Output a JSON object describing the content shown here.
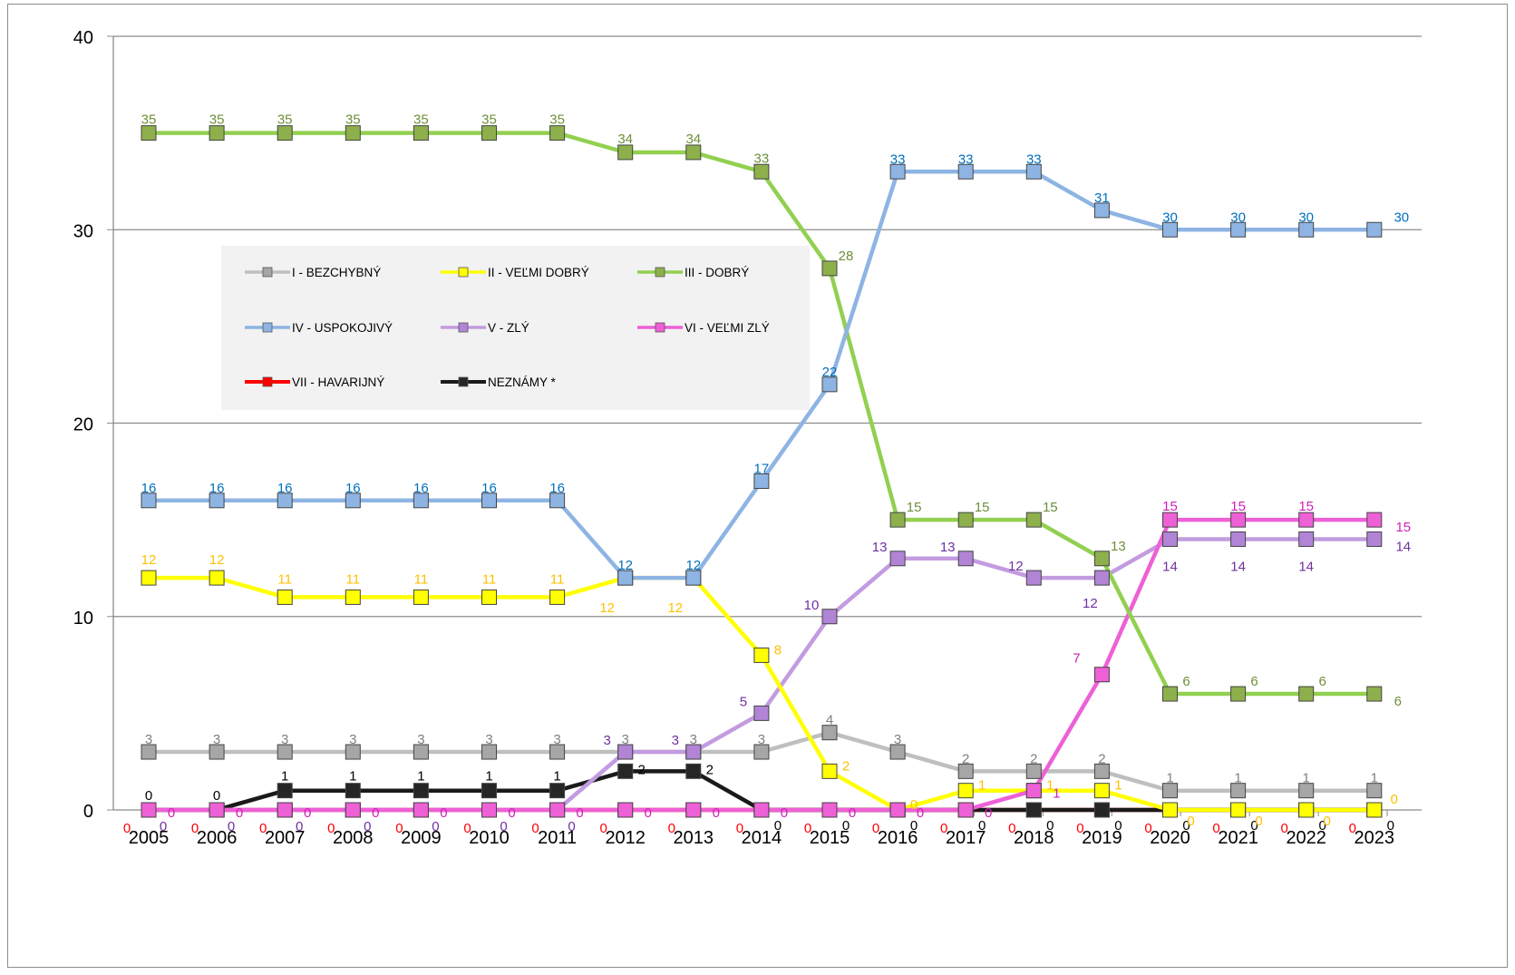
{
  "chart_data": {
    "type": "line",
    "title": "",
    "xlabel": "",
    "ylabel": "",
    "ylim": [
      0,
      40
    ],
    "yticks": [
      0,
      10,
      20,
      30,
      40
    ],
    "grid": true,
    "legend_position": "inside-top-left",
    "categories": [
      "2005",
      "2006",
      "2007",
      "2008",
      "2009",
      "2010",
      "2011",
      "2012",
      "2013",
      "2014",
      "2015",
      "2016",
      "2017",
      "2018",
      "2019",
      "2020",
      "2021",
      "2022",
      "2023"
    ],
    "series": [
      {
        "name": "I - BEZCHYBNÝ",
        "color": "#bfbfbf",
        "marker_fill": "#a6a6a6",
        "label_color": "#7f7f7f",
        "values": [
          3,
          3,
          3,
          3,
          3,
          3,
          3,
          3,
          3,
          3,
          4,
          3,
          2,
          2,
          2,
          1,
          1,
          1,
          1
        ]
      },
      {
        "name": "II - VEĽMI DOBRÝ",
        "color": "#ffff00",
        "marker_fill": "#ffff00",
        "label_color": "#ffc000",
        "values": [
          12,
          12,
          11,
          11,
          11,
          11,
          11,
          12,
          12,
          8,
          2,
          0,
          1,
          1,
          1,
          0,
          0,
          0,
          0
        ]
      },
      {
        "name": "III - DOBRÝ",
        "color": "#92d050",
        "marker_fill": "#8db04c",
        "label_color": "#6e8f3a",
        "values": [
          35,
          35,
          35,
          35,
          35,
          35,
          35,
          34,
          34,
          33,
          28,
          15,
          15,
          15,
          13,
          6,
          6,
          6,
          6
        ]
      },
      {
        "name": "IV - USPOKOJIVÝ",
        "color": "#8eb4e3",
        "marker_fill": "#8eb4e3",
        "label_color": "#0070c0",
        "values": [
          16,
          16,
          16,
          16,
          16,
          16,
          16,
          12,
          12,
          17,
          22,
          33,
          33,
          33,
          31,
          30,
          30,
          30,
          30
        ]
      },
      {
        "name": "V - ZLÝ",
        "color": "#c39be0",
        "marker_fill": "#b184d6",
        "label_color": "#7030a0",
        "values": [
          0,
          0,
          0,
          0,
          0,
          0,
          0,
          3,
          3,
          5,
          10,
          13,
          13,
          12,
          12,
          14,
          14,
          14,
          14
        ]
      },
      {
        "name": "VI - VEĽMI ZLÝ",
        "color": "#ee60d6",
        "marker_fill": "#ee60d6",
        "label_color": "#d020b8",
        "values": [
          0,
          0,
          0,
          0,
          0,
          0,
          0,
          0,
          0,
          0,
          0,
          0,
          0,
          1,
          7,
          15,
          15,
          15,
          15
        ]
      },
      {
        "name": "VII - HAVARIJNÝ",
        "color": "#ff0000",
        "marker_fill": "#ff0000",
        "label_color": "#ff0000",
        "values": [
          0,
          0,
          0,
          0,
          0,
          0,
          0,
          0,
          0,
          0,
          0,
          0,
          0,
          0,
          0,
          0,
          0,
          0,
          0
        ]
      },
      {
        "name": "NEZNÁMY *",
        "color": "#1a1a1a",
        "marker_fill": "#262626",
        "label_color": "#000000",
        "values": [
          0,
          0,
          1,
          1,
          1,
          1,
          1,
          2,
          2,
          0,
          0,
          0,
          0,
          0,
          0,
          0,
          0,
          0,
          0
        ]
      }
    ]
  }
}
